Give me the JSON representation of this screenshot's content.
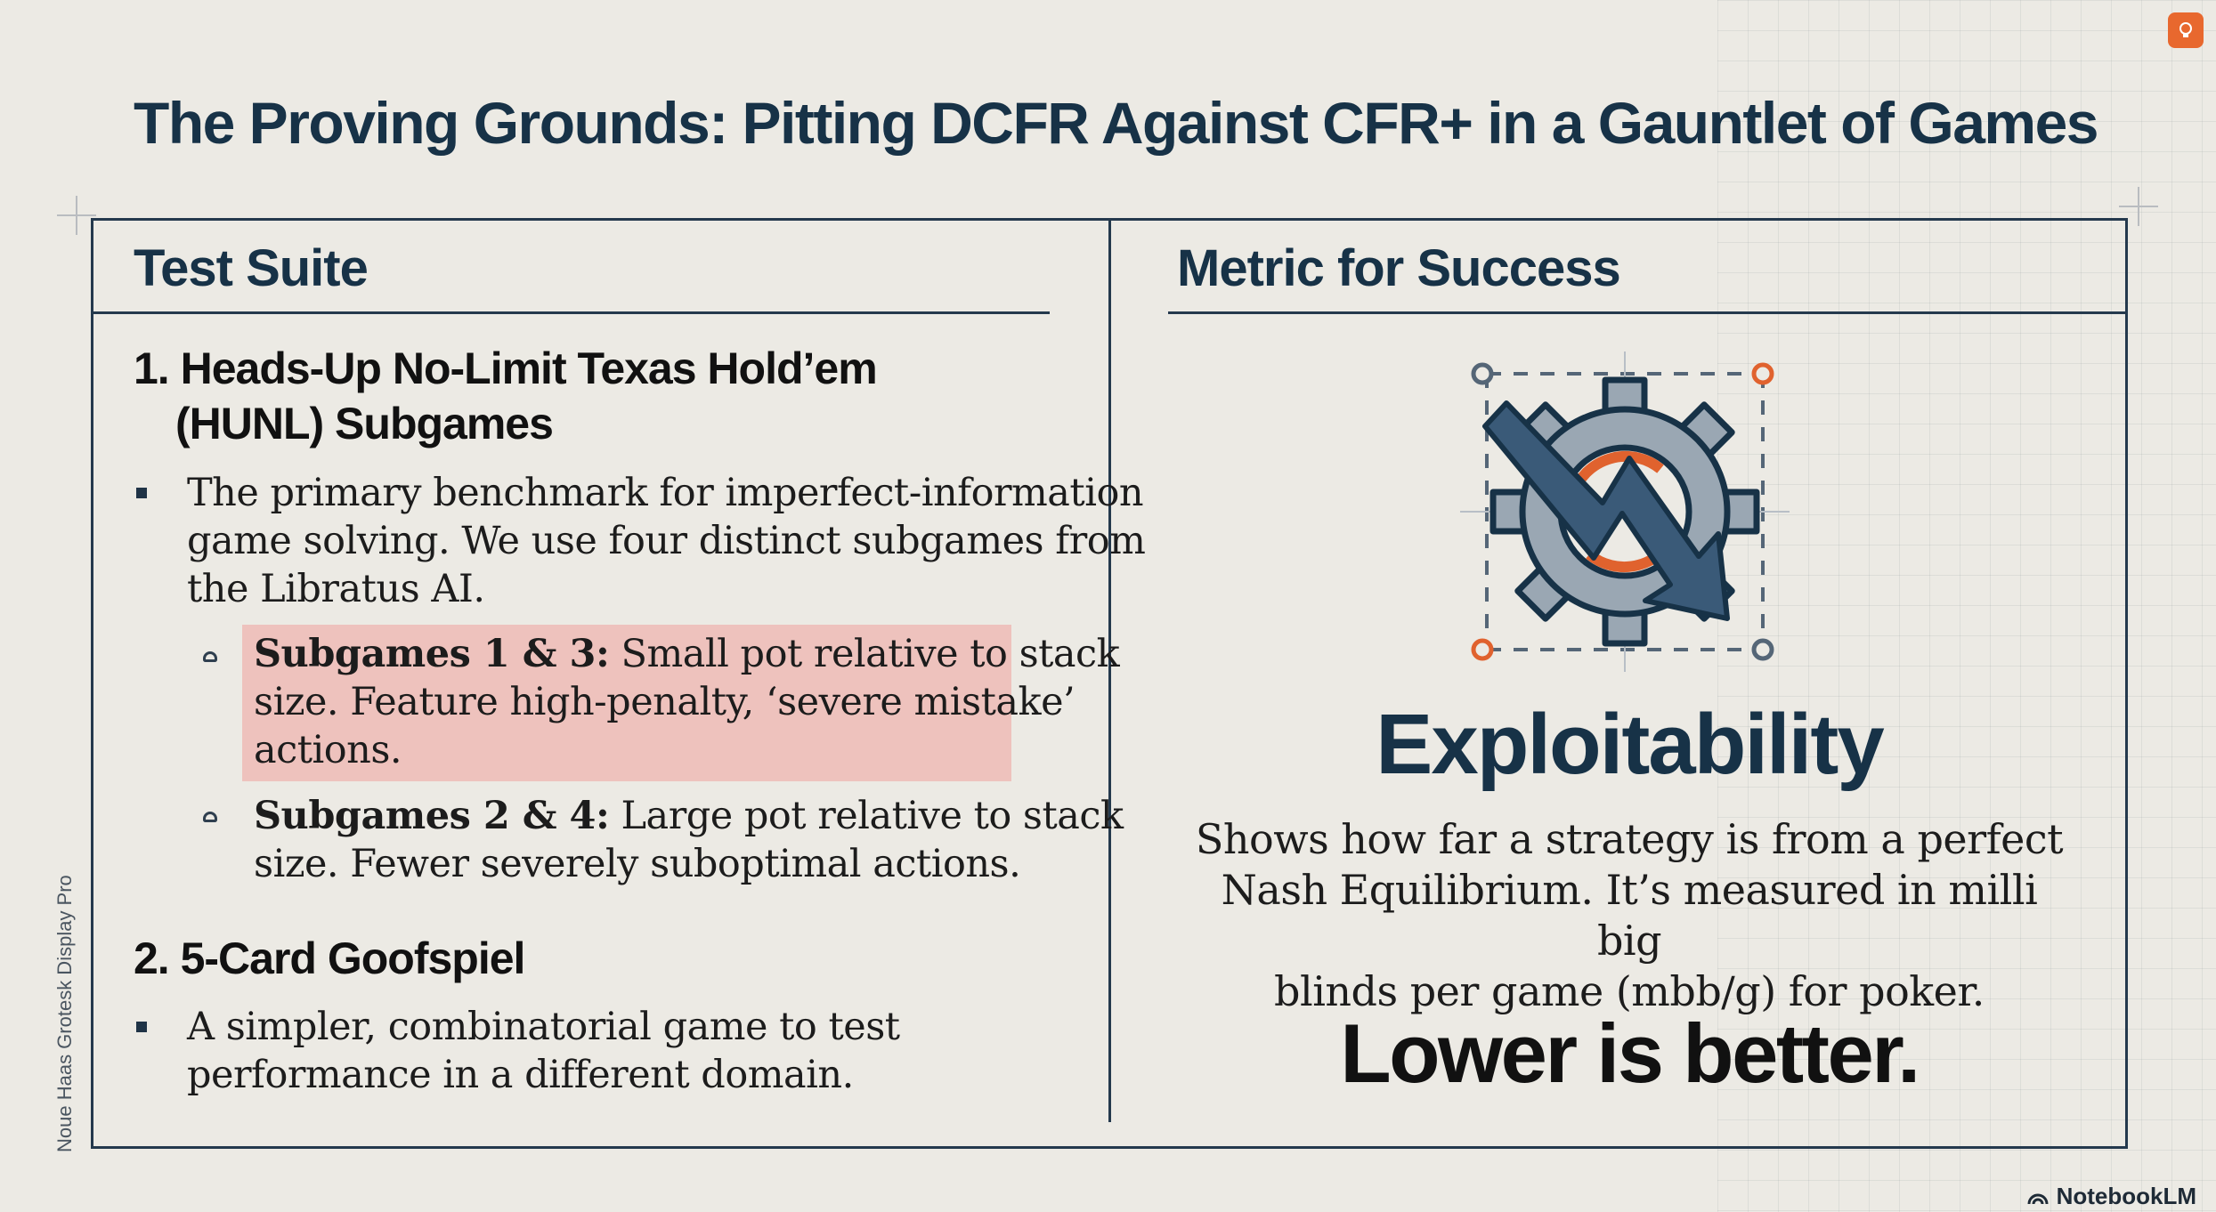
{
  "slide": {
    "title": "The Proving Grounds: Pitting DCFR Against CFR+ in a Gauntlet of Games",
    "left": {
      "heading": "Test Suite",
      "section1": {
        "title_line1": "1. Heads-Up No-Limit Texas Hold’em",
        "title_line2": "(HUNL) Subgames",
        "bullet_lines": [
          "The primary benchmark for imperfect-information",
          "game solving. We use four distinct subgames from",
          "the Libratus AI."
        ],
        "sub_items": [
          {
            "label": "Subgames 1 & 3:",
            "line1": " Small pot relative to stack",
            "line2": "size. Feature high-penalty, ‘severe mistake’",
            "line3": "actions."
          },
          {
            "label": "Subgames 2 & 4:",
            "line1": " Large pot relative to stack",
            "line2": "size. Fewer severely suboptimal actions."
          }
        ]
      },
      "section2": {
        "title": "2. 5-Card Goofspiel",
        "bullet_lines": [
          "A simpler, combinatorial game to test",
          "performance in a different domain."
        ]
      }
    },
    "right": {
      "heading": "Metric for Success",
      "icon": "gear-with-downward-arrow-icon",
      "metric": "Exploitability",
      "description_lines": [
        "Shows how far a strategy is from a perfect",
        "Nash Equilibrium. It’s measured in milli big",
        "blinds per game (mbb/g) for poker."
      ],
      "tagline": "Lower is better."
    },
    "side_note": "Noue Haas Grotesk Display Pro",
    "brand": "NotebookLM"
  },
  "colors": {
    "navy": "#173247",
    "accent_orange": "#e0622e",
    "highlight": "#eec2bd",
    "background": "#eceae4"
  }
}
